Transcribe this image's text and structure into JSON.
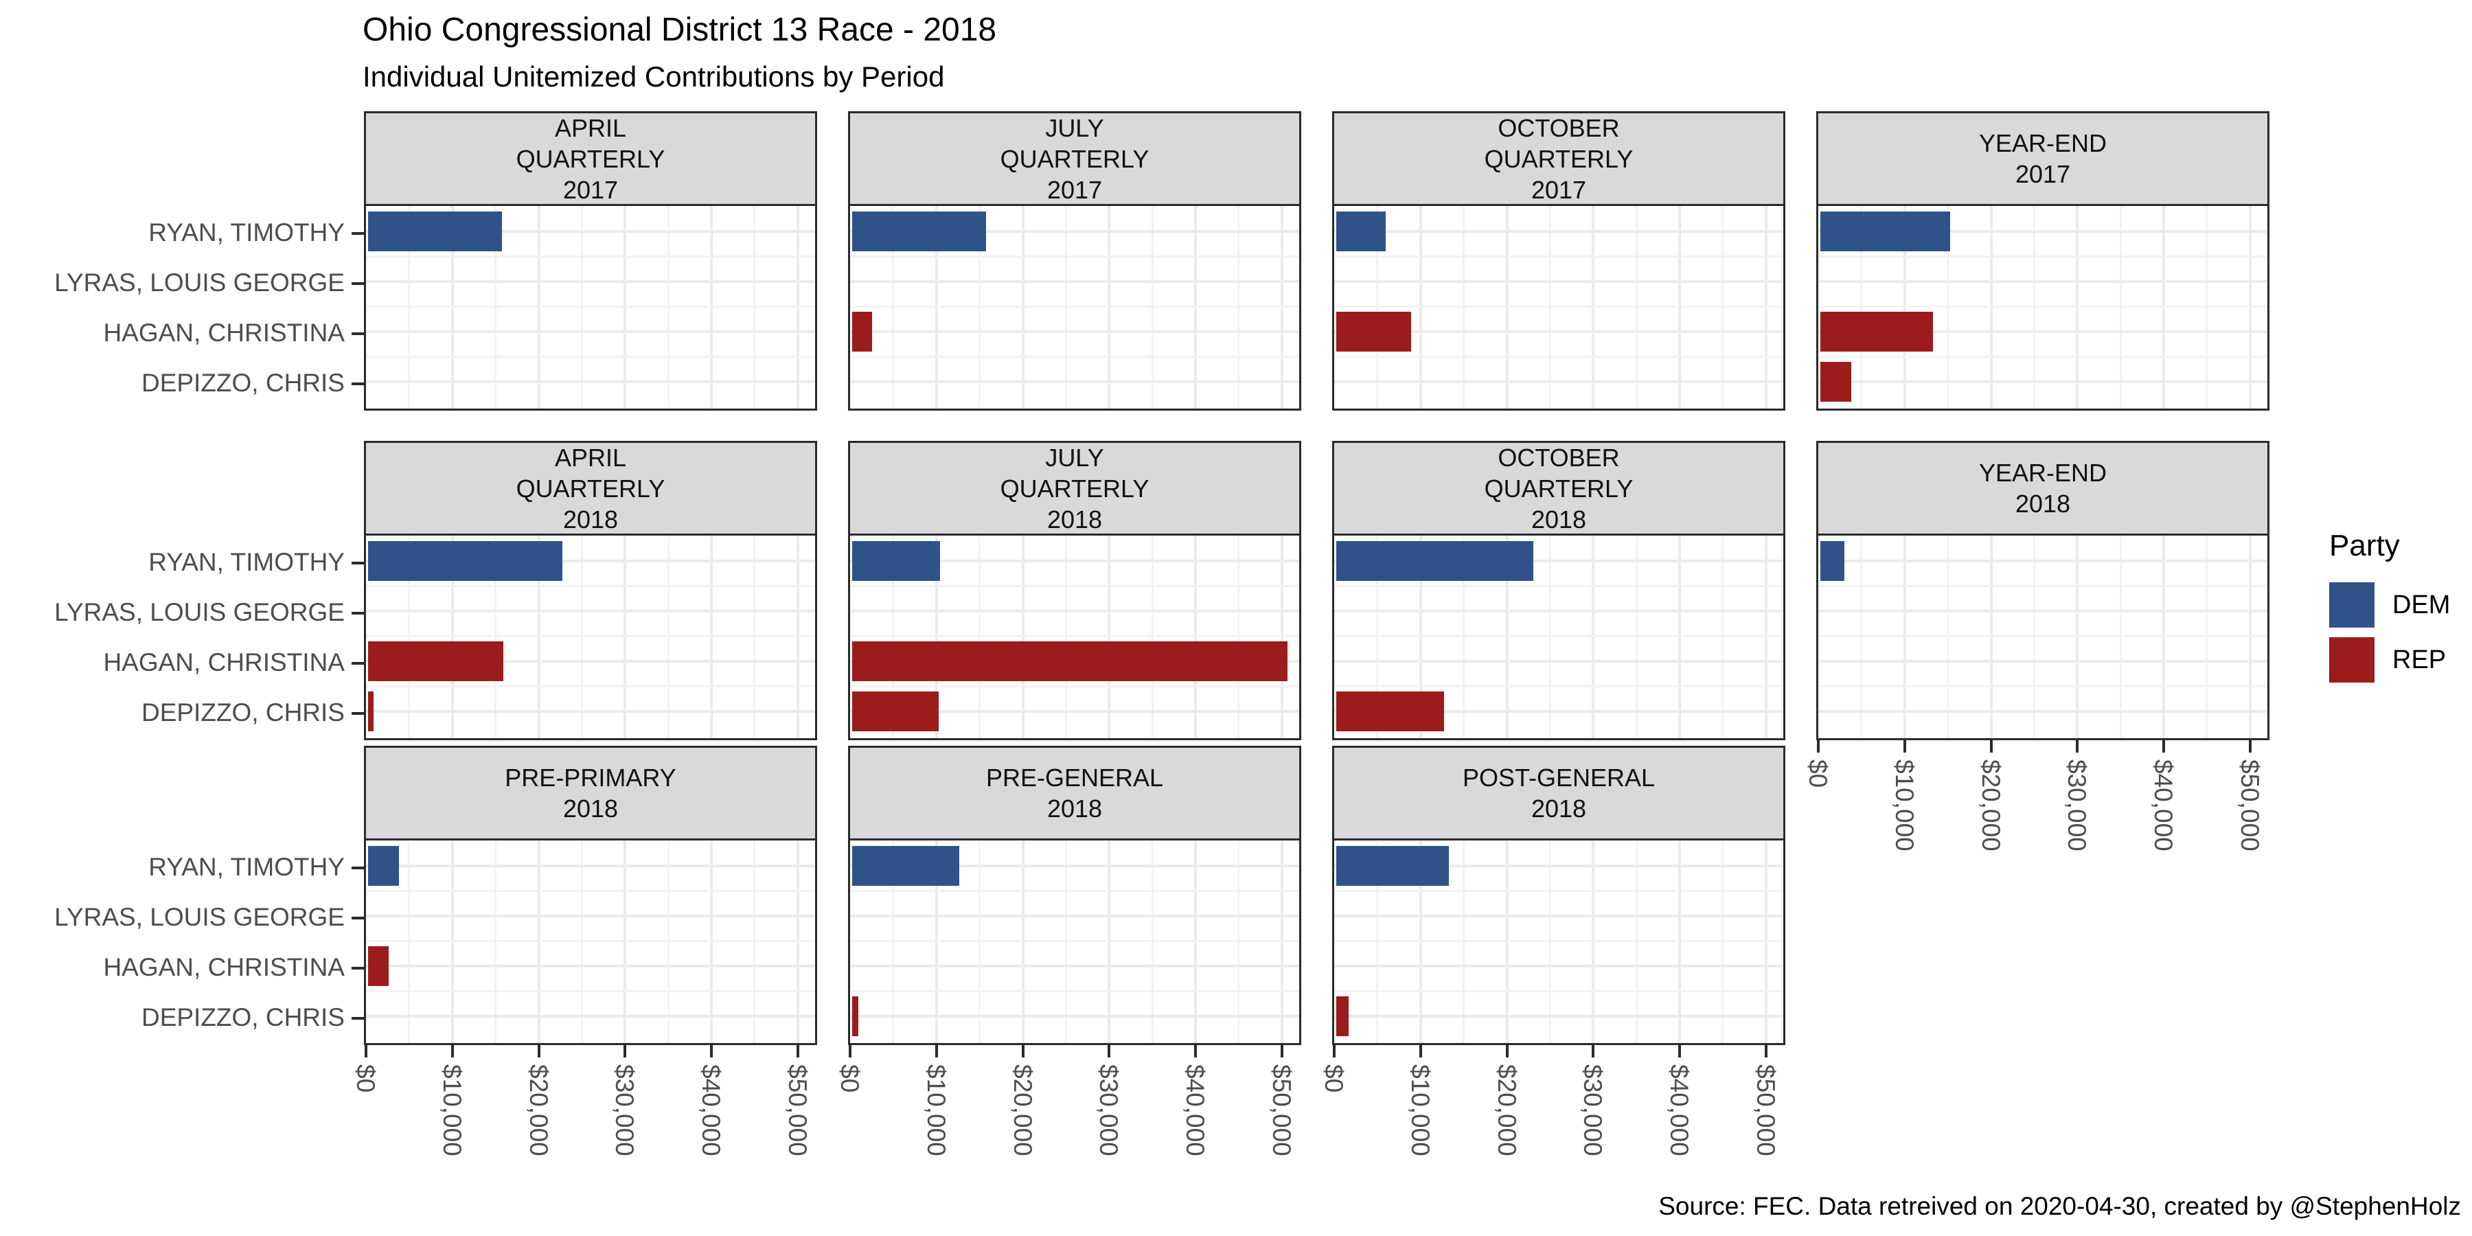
{
  "title": "Ohio Congressional District 13 Race - 2018",
  "subtitle": "Individual Unitemized Contributions by Period",
  "caption": "Source: FEC. Data retreived on 2020-04-30, created by @StephenHolz",
  "legend": {
    "title": "Party",
    "entries": [
      {
        "label": "DEM",
        "color": "#2F5389"
      },
      {
        "label": "REP",
        "color": "#9C1C1C"
      }
    ]
  },
  "colors": {
    "dem": "#2F5389",
    "rep": "#9C1C1C",
    "strip_background": "#D9D9D9",
    "panel_border": "#2B2B2B",
    "axis_text": "#4D4D4D"
  },
  "chart_data": {
    "type": "bar",
    "orientation": "horizontal",
    "title": "Ohio Congressional District 13 Race - 2018",
    "subtitle": "Individual Unitemized Contributions by Period",
    "xlabel": "",
    "ylabel": "",
    "xlim": [
      0,
      52000
    ],
    "grid": "on",
    "legend_position": "right",
    "candidates": [
      "RYAN, TIMOTHY",
      "LYRAS, LOUIS GEORGE",
      "HAGAN, CHRISTINA",
      "DEPIZZO, CHRIS"
    ],
    "candidate_party": {
      "RYAN, TIMOTHY": "DEM",
      "LYRAS, LOUIS GEORGE": "DEM",
      "HAGAN, CHRISTINA": "REP",
      "DEPIZZO, CHRIS": "REP"
    },
    "x_ticks": [
      "$0",
      "$10,000",
      "$20,000",
      "$30,000",
      "$40,000",
      "$50,000"
    ],
    "x_tick_values": [
      0,
      10000,
      20000,
      30000,
      40000,
      50000
    ],
    "facets": [
      {
        "label_lines": [
          "APRIL",
          "QUARTERLY",
          "2017"
        ],
        "row": 0,
        "col": 0,
        "x_axis": false,
        "values": {
          "RYAN, TIMOTHY": 15500
        }
      },
      {
        "label_lines": [
          "JULY",
          "QUARTERLY",
          "2017"
        ],
        "row": 0,
        "col": 1,
        "x_axis": false,
        "values": {
          "RYAN, TIMOTHY": 15500,
          "HAGAN, CHRISTINA": 2300
        }
      },
      {
        "label_lines": [
          "OCTOBER",
          "QUARTERLY",
          "2017"
        ],
        "row": 0,
        "col": 2,
        "x_axis": false,
        "values": {
          "RYAN, TIMOTHY": 5700,
          "HAGAN, CHRISTINA": 8700
        }
      },
      {
        "label_lines": [
          "YEAR-END",
          "2017"
        ],
        "row": 0,
        "col": 3,
        "x_axis": false,
        "values": {
          "RYAN, TIMOTHY": 15000,
          "HAGAN, CHRISTINA": 13000,
          "DEPIZZO, CHRIS": 3600
        }
      },
      {
        "label_lines": [
          "APRIL",
          "QUARTERLY",
          "2018"
        ],
        "row": 1,
        "col": 0,
        "x_axis": false,
        "values": {
          "RYAN, TIMOTHY": 22500,
          "HAGAN, CHRISTINA": 15700,
          "DEPIZZO, CHRIS": 600
        }
      },
      {
        "label_lines": [
          "JULY",
          "QUARTERLY",
          "2018"
        ],
        "row": 1,
        "col": 1,
        "x_axis": false,
        "values": {
          "RYAN, TIMOTHY": 10200,
          "HAGAN, CHRISTINA": 50400,
          "DEPIZZO, CHRIS": 10000
        }
      },
      {
        "label_lines": [
          "OCTOBER",
          "QUARTERLY",
          "2018"
        ],
        "row": 1,
        "col": 2,
        "x_axis": false,
        "values": {
          "RYAN, TIMOTHY": 22800,
          "DEPIZZO, CHRIS": 12500
        }
      },
      {
        "label_lines": [
          "YEAR-END",
          "2018"
        ],
        "row": 1,
        "col": 3,
        "x_axis": true,
        "values": {
          "RYAN, TIMOTHY": 2800
        }
      },
      {
        "label_lines": [
          "PRE-PRIMARY",
          "2018"
        ],
        "row": 2,
        "col": 0,
        "x_axis": true,
        "values": {
          "RYAN, TIMOTHY": 3600,
          "HAGAN, CHRISTINA": 2400
        }
      },
      {
        "label_lines": [
          "PRE-GENERAL",
          "2018"
        ],
        "row": 2,
        "col": 1,
        "x_axis": true,
        "values": {
          "RYAN, TIMOTHY": 12400,
          "DEPIZZO, CHRIS": 700
        }
      },
      {
        "label_lines": [
          "POST-GENERAL",
          "2018"
        ],
        "row": 2,
        "col": 2,
        "x_axis": true,
        "values": {
          "RYAN, TIMOTHY": 13000,
          "DEPIZZO, CHRIS": 1400
        }
      }
    ]
  }
}
